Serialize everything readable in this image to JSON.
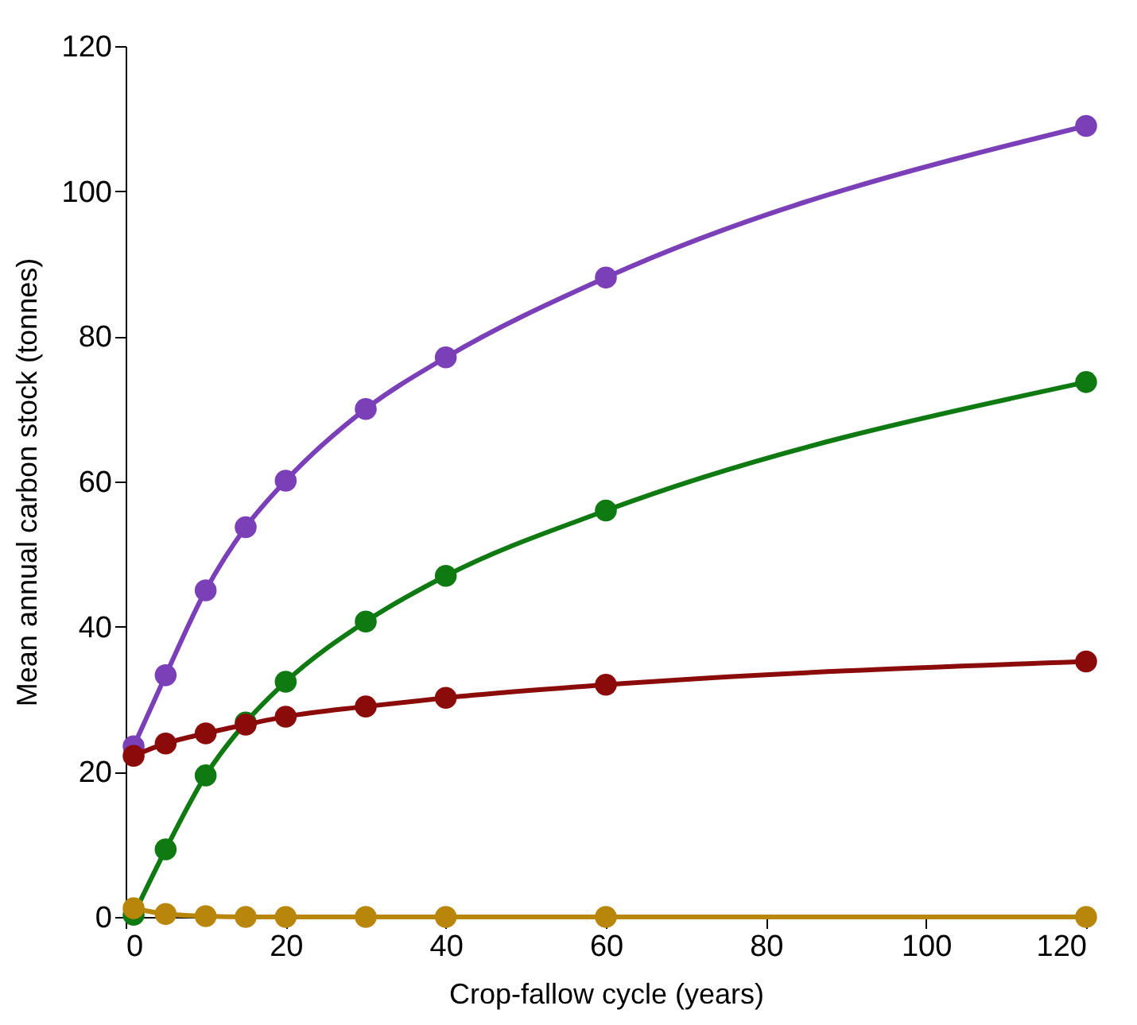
{
  "chart_data": {
    "type": "line",
    "xlabel": "Crop-fallow cycle (years)",
    "ylabel": "Mean annual carbon stock (tonnes)",
    "x": [
      1,
      5,
      10,
      15,
      20,
      30,
      40,
      60,
      120
    ],
    "xlim": [
      0,
      120
    ],
    "xticks": [
      0,
      20,
      40,
      60,
      80,
      100,
      120
    ],
    "ylim": [
      0,
      120
    ],
    "yticks": [
      0,
      20,
      40,
      60,
      80,
      100,
      120
    ],
    "grid": false,
    "marker": "circle",
    "line_style": "solid",
    "series": [
      {
        "color": "#7b3fb8",
        "values": [
          23.5,
          33.3,
          45,
          53.7,
          60.1,
          70,
          77.1,
          88.1,
          109
        ]
      },
      {
        "color": "#0f7a12",
        "values": [
          0.3,
          9.3,
          19.5,
          26.8,
          32.4,
          40.7,
          47,
          56,
          73.7
        ]
      },
      {
        "color": "#8b0a0a",
        "values": [
          22.2,
          23.9,
          25.3,
          26.5,
          27.6,
          29,
          30.2,
          32,
          35.2
        ]
      },
      {
        "color": "#b8860b",
        "values": [
          1.2,
          0.4,
          0.1,
          0,
          0,
          0,
          0,
          0,
          0
        ]
      }
    ]
  }
}
